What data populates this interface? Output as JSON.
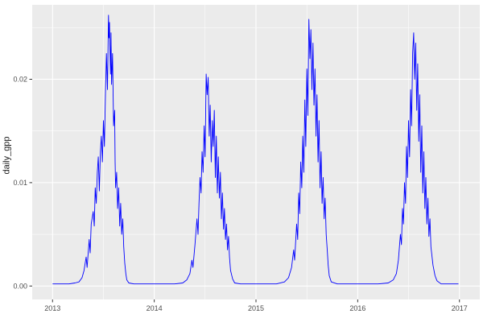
{
  "chart_data": {
    "type": "line",
    "title": "",
    "xlabel": "",
    "ylabel": "daily_gpp",
    "legend": "none",
    "grid": true,
    "xlim": [
      2012.8,
      2017.2
    ],
    "ylim": [
      -0.0013,
      0.0272
    ],
    "x_ticks": [
      2013,
      2014,
      2015,
      2016,
      2017
    ],
    "x_tick_labels": [
      "2013",
      "2014",
      "2015",
      "2016",
      "2017"
    ],
    "x_minor_ticks": [
      2013.5,
      2014.5,
      2015.5,
      2016.5
    ],
    "y_ticks": [
      0,
      0.01,
      0.02
    ],
    "y_tick_labels": [
      "0.00",
      "0.01",
      "0.02"
    ],
    "y_minor_ticks": [
      0.005,
      0.015,
      0.025
    ],
    "colors": {
      "line": "#0000ff",
      "panel_background": "#ebebeb",
      "grid_major": "#ffffff",
      "grid_minor": "#ffffff",
      "tick_mark": "#333333",
      "tick_text": "#4d4d4d"
    },
    "series": [
      {
        "name": "daily_gpp",
        "points": [
          [
            2013.0,
            0.0002
          ],
          [
            2013.08,
            0.0002
          ],
          [
            2013.16,
            0.0002
          ],
          [
            2013.22,
            0.0003
          ],
          [
            2013.26,
            0.0004
          ],
          [
            2013.29,
            0.0008
          ],
          [
            2013.31,
            0.0015
          ],
          [
            2013.33,
            0.0028
          ],
          [
            2013.34,
            0.0018
          ],
          [
            2013.36,
            0.0045
          ],
          [
            2013.37,
            0.0032
          ],
          [
            2013.38,
            0.006
          ],
          [
            2013.4,
            0.0072
          ],
          [
            2013.41,
            0.0058
          ],
          [
            2013.42,
            0.0095
          ],
          [
            2013.43,
            0.008
          ],
          [
            2013.44,
            0.011
          ],
          [
            2013.45,
            0.0125
          ],
          [
            2013.46,
            0.0092
          ],
          [
            2013.47,
            0.013
          ],
          [
            2013.48,
            0.0145
          ],
          [
            2013.49,
            0.012
          ],
          [
            2013.5,
            0.016
          ],
          [
            2013.51,
            0.0135
          ],
          [
            2013.52,
            0.0185
          ],
          [
            2013.53,
            0.0225
          ],
          [
            2013.54,
            0.019
          ],
          [
            2013.55,
            0.0262
          ],
          [
            2013.555,
            0.024
          ],
          [
            2013.56,
            0.0255
          ],
          [
            2013.57,
            0.0205
          ],
          [
            2013.575,
            0.0245
          ],
          [
            2013.58,
            0.0195
          ],
          [
            2013.59,
            0.0225
          ],
          [
            2013.6,
            0.0155
          ],
          [
            2013.61,
            0.017
          ],
          [
            2013.615,
            0.012
          ],
          [
            2013.62,
            0.0095
          ],
          [
            2013.63,
            0.011
          ],
          [
            2013.64,
            0.0075
          ],
          [
            2013.65,
            0.0095
          ],
          [
            2013.66,
            0.0058
          ],
          [
            2013.67,
            0.008
          ],
          [
            2013.68,
            0.005
          ],
          [
            2013.69,
            0.0065
          ],
          [
            2013.7,
            0.0038
          ],
          [
            2013.71,
            0.0022
          ],
          [
            2013.72,
            0.0012
          ],
          [
            2013.73,
            0.0006
          ],
          [
            2013.75,
            0.0003
          ],
          [
            2013.8,
            0.0002
          ],
          [
            2013.9,
            0.0002
          ],
          [
            2014.0,
            0.0002
          ],
          [
            2014.1,
            0.0002
          ],
          [
            2014.2,
            0.0002
          ],
          [
            2014.28,
            0.0003
          ],
          [
            2014.32,
            0.0006
          ],
          [
            2014.35,
            0.0012
          ],
          [
            2014.37,
            0.0025
          ],
          [
            2014.38,
            0.0018
          ],
          [
            2014.4,
            0.004
          ],
          [
            2014.42,
            0.0065
          ],
          [
            2014.43,
            0.005
          ],
          [
            2014.44,
            0.008
          ],
          [
            2014.45,
            0.0105
          ],
          [
            2014.46,
            0.009
          ],
          [
            2014.47,
            0.013
          ],
          [
            2014.48,
            0.011
          ],
          [
            2014.49,
            0.0155
          ],
          [
            2014.5,
            0.0125
          ],
          [
            2014.51,
            0.0205
          ],
          [
            2014.52,
            0.0185
          ],
          [
            2014.53,
            0.0202
          ],
          [
            2014.54,
            0.0145
          ],
          [
            2014.55,
            0.0175
          ],
          [
            2014.56,
            0.012
          ],
          [
            2014.57,
            0.016
          ],
          [
            2014.58,
            0.0135
          ],
          [
            2014.59,
            0.017
          ],
          [
            2014.6,
            0.0105
          ],
          [
            2014.61,
            0.0145
          ],
          [
            2014.62,
            0.009
          ],
          [
            2014.63,
            0.0125
          ],
          [
            2014.64,
            0.0085
          ],
          [
            2014.65,
            0.011
          ],
          [
            2014.66,
            0.0065
          ],
          [
            2014.67,
            0.009
          ],
          [
            2014.68,
            0.0055
          ],
          [
            2014.69,
            0.0075
          ],
          [
            2014.7,
            0.0045
          ],
          [
            2014.71,
            0.006
          ],
          [
            2014.72,
            0.0035
          ],
          [
            2014.73,
            0.0048
          ],
          [
            2014.74,
            0.0028
          ],
          [
            2014.75,
            0.0015
          ],
          [
            2014.77,
            0.0007
          ],
          [
            2014.79,
            0.0003
          ],
          [
            2014.85,
            0.0002
          ],
          [
            2014.95,
            0.0002
          ],
          [
            2015.0,
            0.0002
          ],
          [
            2015.1,
            0.0002
          ],
          [
            2015.2,
            0.0002
          ],
          [
            2015.28,
            0.0004
          ],
          [
            2015.32,
            0.0008
          ],
          [
            2015.35,
            0.0018
          ],
          [
            2015.37,
            0.0035
          ],
          [
            2015.38,
            0.0025
          ],
          [
            2015.4,
            0.006
          ],
          [
            2015.41,
            0.0045
          ],
          [
            2015.42,
            0.009
          ],
          [
            2015.43,
            0.007
          ],
          [
            2015.44,
            0.012
          ],
          [
            2015.45,
            0.0095
          ],
          [
            2015.46,
            0.0145
          ],
          [
            2015.47,
            0.011
          ],
          [
            2015.48,
            0.018
          ],
          [
            2015.49,
            0.0135
          ],
          [
            2015.5,
            0.021
          ],
          [
            2015.51,
            0.0165
          ],
          [
            2015.52,
            0.0258
          ],
          [
            2015.53,
            0.022
          ],
          [
            2015.54,
            0.0248
          ],
          [
            2015.55,
            0.019
          ],
          [
            2015.56,
            0.0235
          ],
          [
            2015.57,
            0.0175
          ],
          [
            2015.58,
            0.021
          ],
          [
            2015.59,
            0.0145
          ],
          [
            2015.6,
            0.0185
          ],
          [
            2015.61,
            0.012
          ],
          [
            2015.62,
            0.016
          ],
          [
            2015.63,
            0.0095
          ],
          [
            2015.64,
            0.013
          ],
          [
            2015.65,
            0.008
          ],
          [
            2015.66,
            0.0105
          ],
          [
            2015.67,
            0.0065
          ],
          [
            2015.68,
            0.0085
          ],
          [
            2015.69,
            0.005
          ],
          [
            2015.7,
            0.0035
          ],
          [
            2015.71,
            0.002
          ],
          [
            2015.72,
            0.001
          ],
          [
            2015.74,
            0.0004
          ],
          [
            2015.8,
            0.0002
          ],
          [
            2015.9,
            0.0002
          ],
          [
            2016.0,
            0.0002
          ],
          [
            2016.1,
            0.0002
          ],
          [
            2016.2,
            0.0002
          ],
          [
            2016.3,
            0.0003
          ],
          [
            2016.35,
            0.0006
          ],
          [
            2016.38,
            0.0012
          ],
          [
            2016.4,
            0.0025
          ],
          [
            2016.42,
            0.005
          ],
          [
            2016.43,
            0.004
          ],
          [
            2016.44,
            0.0075
          ],
          [
            2016.45,
            0.006
          ],
          [
            2016.46,
            0.01
          ],
          [
            2016.47,
            0.008
          ],
          [
            2016.48,
            0.0135
          ],
          [
            2016.49,
            0.0105
          ],
          [
            2016.5,
            0.016
          ],
          [
            2016.51,
            0.0125
          ],
          [
            2016.52,
            0.019
          ],
          [
            2016.53,
            0.0155
          ],
          [
            2016.54,
            0.0225
          ],
          [
            2016.55,
            0.0245
          ],
          [
            2016.56,
            0.02
          ],
          [
            2016.57,
            0.0235
          ],
          [
            2016.58,
            0.017
          ],
          [
            2016.59,
            0.0215
          ],
          [
            2016.6,
            0.014
          ],
          [
            2016.61,
            0.0185
          ],
          [
            2016.62,
            0.011
          ],
          [
            2016.63,
            0.0155
          ],
          [
            2016.64,
            0.009
          ],
          [
            2016.65,
            0.013
          ],
          [
            2016.66,
            0.0075
          ],
          [
            2016.67,
            0.0105
          ],
          [
            2016.68,
            0.006
          ],
          [
            2016.69,
            0.0085
          ],
          [
            2016.7,
            0.0048
          ],
          [
            2016.71,
            0.0065
          ],
          [
            2016.72,
            0.0038
          ],
          [
            2016.74,
            0.002
          ],
          [
            2016.76,
            0.001
          ],
          [
            2016.78,
            0.0005
          ],
          [
            2016.82,
            0.0002
          ],
          [
            2016.9,
            0.0002
          ],
          [
            2016.99,
            0.0002
          ]
        ]
      }
    ]
  }
}
